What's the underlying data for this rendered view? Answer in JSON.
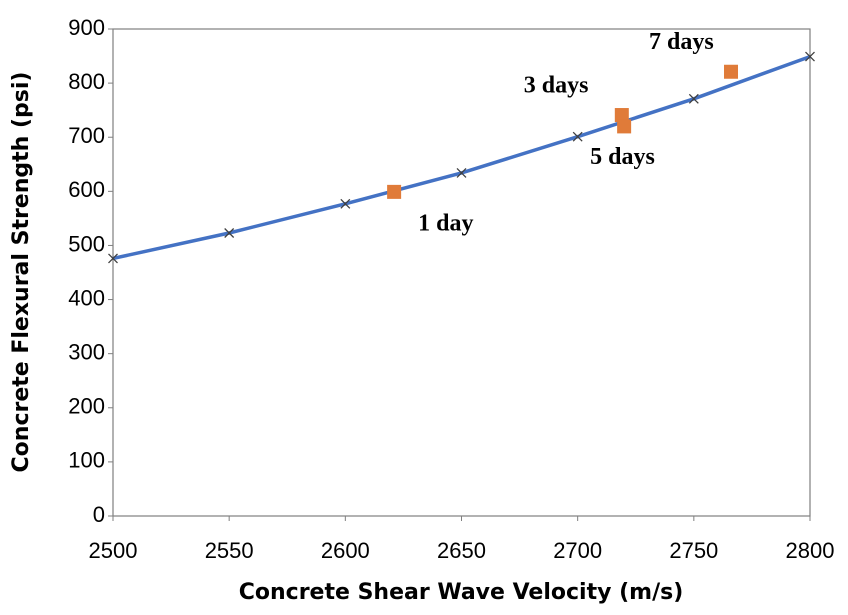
{
  "chart_data": {
    "type": "scatter",
    "xlabel": "Concrete Shear Wave Velocity (m/s)",
    "ylabel": "Concrete Flexural Strength (psi)",
    "xlim": [
      2500,
      2800
    ],
    "xticks": [
      2500,
      2550,
      2600,
      2650,
      2700,
      2750,
      2800
    ],
    "ylim": [
      0,
      900
    ],
    "yticks": [
      0,
      100,
      200,
      300,
      400,
      500,
      600,
      700,
      800,
      900
    ],
    "grid": false,
    "series": [
      {
        "kind": "line",
        "color": "#4472c4",
        "marker_color": "#404040",
        "x": [
          2500,
          2550,
          2600,
          2650,
          2700,
          2750,
          2800
        ],
        "values": [
          476,
          523,
          577,
          634,
          701,
          771,
          849
        ]
      },
      {
        "kind": "points",
        "color": "#e07b39",
        "x": [
          2621,
          2719,
          2720,
          2766
        ],
        "values": [
          599,
          741,
          720,
          821
        ],
        "labels": [
          "1 day",
          "3 days",
          "5 days",
          "7 days"
        ]
      }
    ]
  }
}
